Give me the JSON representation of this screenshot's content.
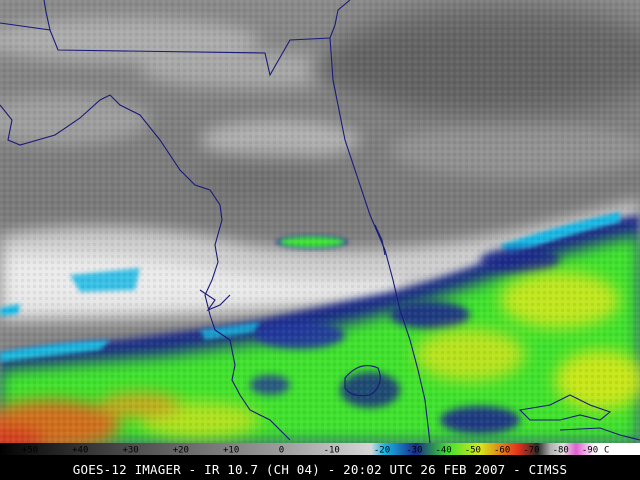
{
  "title": "GOES-12 IMAGER - IR 10.7 (CH 04) - 20:02 UTC 26 FEB 2007 - CIMSS",
  "colorbar": {
    "unit": "C",
    "ticks": [
      {
        "label": "+50",
        "value": 50
      },
      {
        "label": "+40",
        "value": 40
      },
      {
        "label": "+30",
        "value": 30
      },
      {
        "label": "+20",
        "value": 20
      },
      {
        "label": "+10",
        "value": 10
      },
      {
        "label": "0",
        "value": 0
      },
      {
        "label": "-10",
        "value": -10
      },
      {
        "label": "-20",
        "value": -20
      },
      {
        "label": "-30",
        "value": -30
      },
      {
        "label": "-40",
        "value": -40
      },
      {
        "label": "-50",
        "value": -50
      },
      {
        "label": "-60",
        "value": -60
      },
      {
        "label": "-70",
        "value": -70
      },
      {
        "label": "-80",
        "value": -80
      },
      {
        "label": "-90",
        "value": -90
      }
    ]
  },
  "colors": {
    "background": "#000000",
    "boundary_lines": "#1a1a7a",
    "cold_cloud_green": "#3fe22f",
    "cold_cloud_yellow": "#d8e81a",
    "cold_cloud_blue": "#1a2c8a",
    "cold_cloud_cyan": "#19b9e6",
    "warm_gray": "#7f7f7f"
  }
}
